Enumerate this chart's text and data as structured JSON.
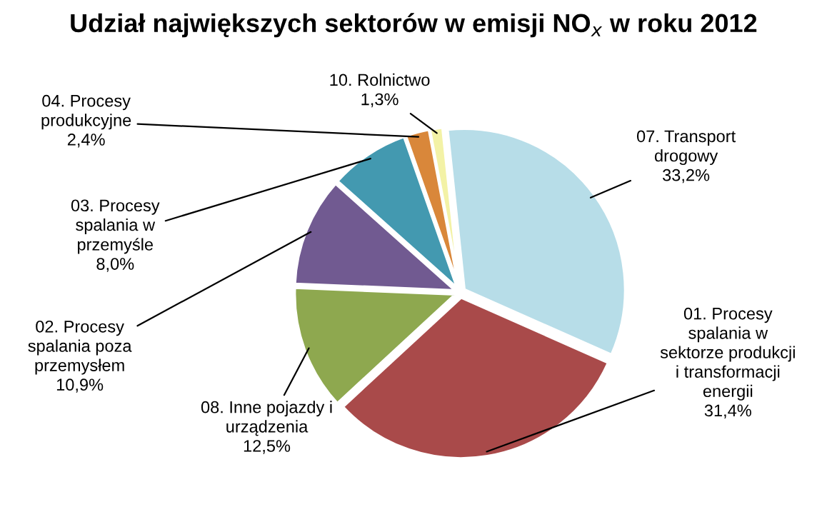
{
  "chart_data": {
    "type": "pie",
    "title": "Udział największych sektorów w emisji NO$_{x}$ w roku 2012",
    "categories": [
      "07. Transport\ndrogowy",
      "01. Procesy\nspalania w\nsektorze produkcji\ni transformacji\nenergii",
      "08. Inne pojazdy i\nurządzenia",
      "02. Procesy\nspalania poza\nprzemysłem",
      "03. Procesy\nspalania w\nprzemyśle",
      "04. Procesy\nprodukcyjne",
      "10. Rolnictwo"
    ],
    "values": [
      33.2,
      31.4,
      12.5,
      10.9,
      8.0,
      2.4,
      1.3
    ],
    "value_labels": [
      "33,2%",
      "31,4%",
      "12,5%",
      "10,9%",
      "8,0%",
      "2,4%",
      "1,3%"
    ],
    "colors": [
      "#b7dde8",
      "#a94a4a",
      "#8ea84f",
      "#715a91",
      "#4399b0",
      "#d9873a",
      "#f3f2a6"
    ]
  }
}
